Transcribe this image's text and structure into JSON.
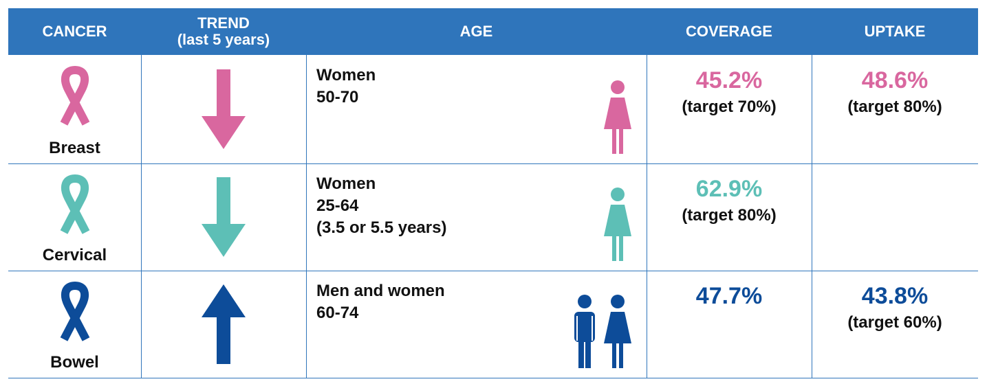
{
  "table": {
    "header": [
      "CANCER",
      "TREND\n(last 5 years)",
      "AGE",
      "COVERAGE",
      "UPTAKE"
    ],
    "header_color": "#2f75bb",
    "rows": [
      {
        "cancer": "Breast",
        "trend": "down",
        "color": "#d9679f",
        "age": [
          "Women",
          "50-70"
        ],
        "people": [
          "female"
        ],
        "coverage": "45.2%",
        "coverage_target": "(target 70%)",
        "uptake": "48.6%",
        "uptake_target": "(target 80%)"
      },
      {
        "cancer": "Cervical",
        "trend": "down",
        "color": "#5dbfb6",
        "age": [
          "Women",
          "25-64",
          "(3.5 or 5.5 years)"
        ],
        "people": [
          "female"
        ],
        "coverage": "62.9%",
        "coverage_target": "(target 80%)"
      },
      {
        "cancer": "Bowel",
        "trend": "up",
        "color": "#0d4c99",
        "age": [
          "Men and women",
          "60-74"
        ],
        "people": [
          "male",
          "female"
        ],
        "coverage": "47.7%",
        "uptake": "43.8%",
        "uptake_target": "(target 60%)"
      }
    ]
  }
}
